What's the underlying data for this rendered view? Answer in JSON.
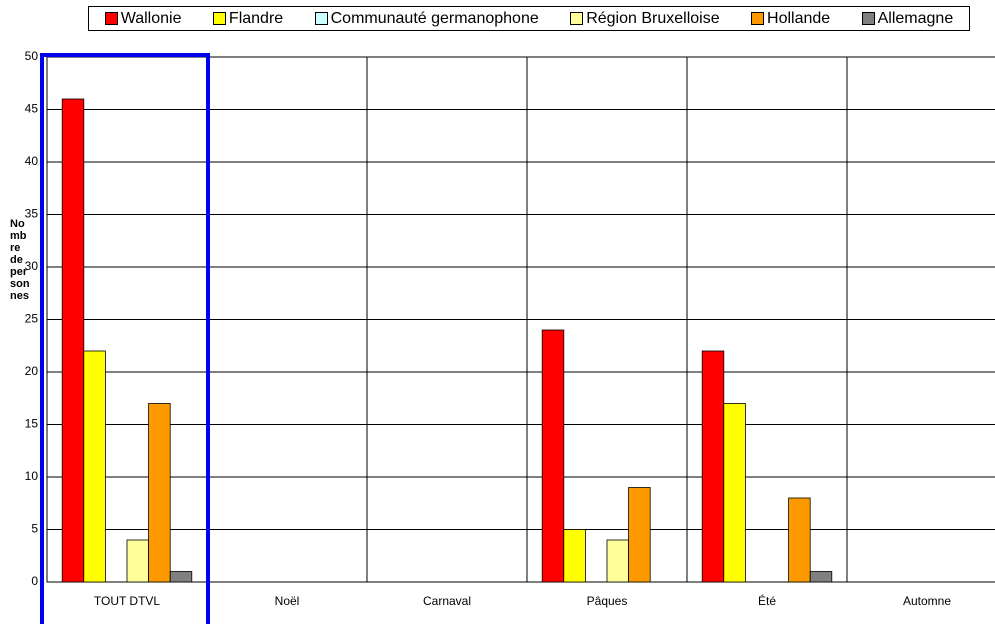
{
  "chart_data": {
    "type": "bar",
    "y_label": "Nombre de personnes",
    "categories": [
      "TOUT DTVL",
      "Noël",
      "Carnaval",
      "Pâques",
      "Été",
      "Automne"
    ],
    "series": [
      {
        "name": "Wallonie",
        "color": "#ff0000",
        "values": [
          46,
          0,
          0,
          24,
          22,
          0
        ]
      },
      {
        "name": "Flandre",
        "color": "#ffff00",
        "values": [
          22,
          0,
          0,
          5,
          17,
          0
        ]
      },
      {
        "name": "Communauté germanophone",
        "color": "#ccffff",
        "values": [
          0,
          0,
          0,
          0,
          0,
          0
        ]
      },
      {
        "name": "Région Bruxelloise",
        "color": "#ffff99",
        "values": [
          4,
          0,
          0,
          4,
          0,
          0
        ]
      },
      {
        "name": "Hollande",
        "color": "#ff9900",
        "values": [
          17,
          0,
          0,
          9,
          8,
          0
        ]
      },
      {
        "name": "Allemagne",
        "color": "#808080",
        "values": [
          1,
          0,
          0,
          0,
          1,
          0
        ]
      }
    ],
    "ylim": [
      0,
      50
    ],
    "yticks": [
      0,
      5,
      10,
      15,
      20,
      25,
      30,
      35,
      40,
      45,
      50
    ],
    "grid": true
  }
}
